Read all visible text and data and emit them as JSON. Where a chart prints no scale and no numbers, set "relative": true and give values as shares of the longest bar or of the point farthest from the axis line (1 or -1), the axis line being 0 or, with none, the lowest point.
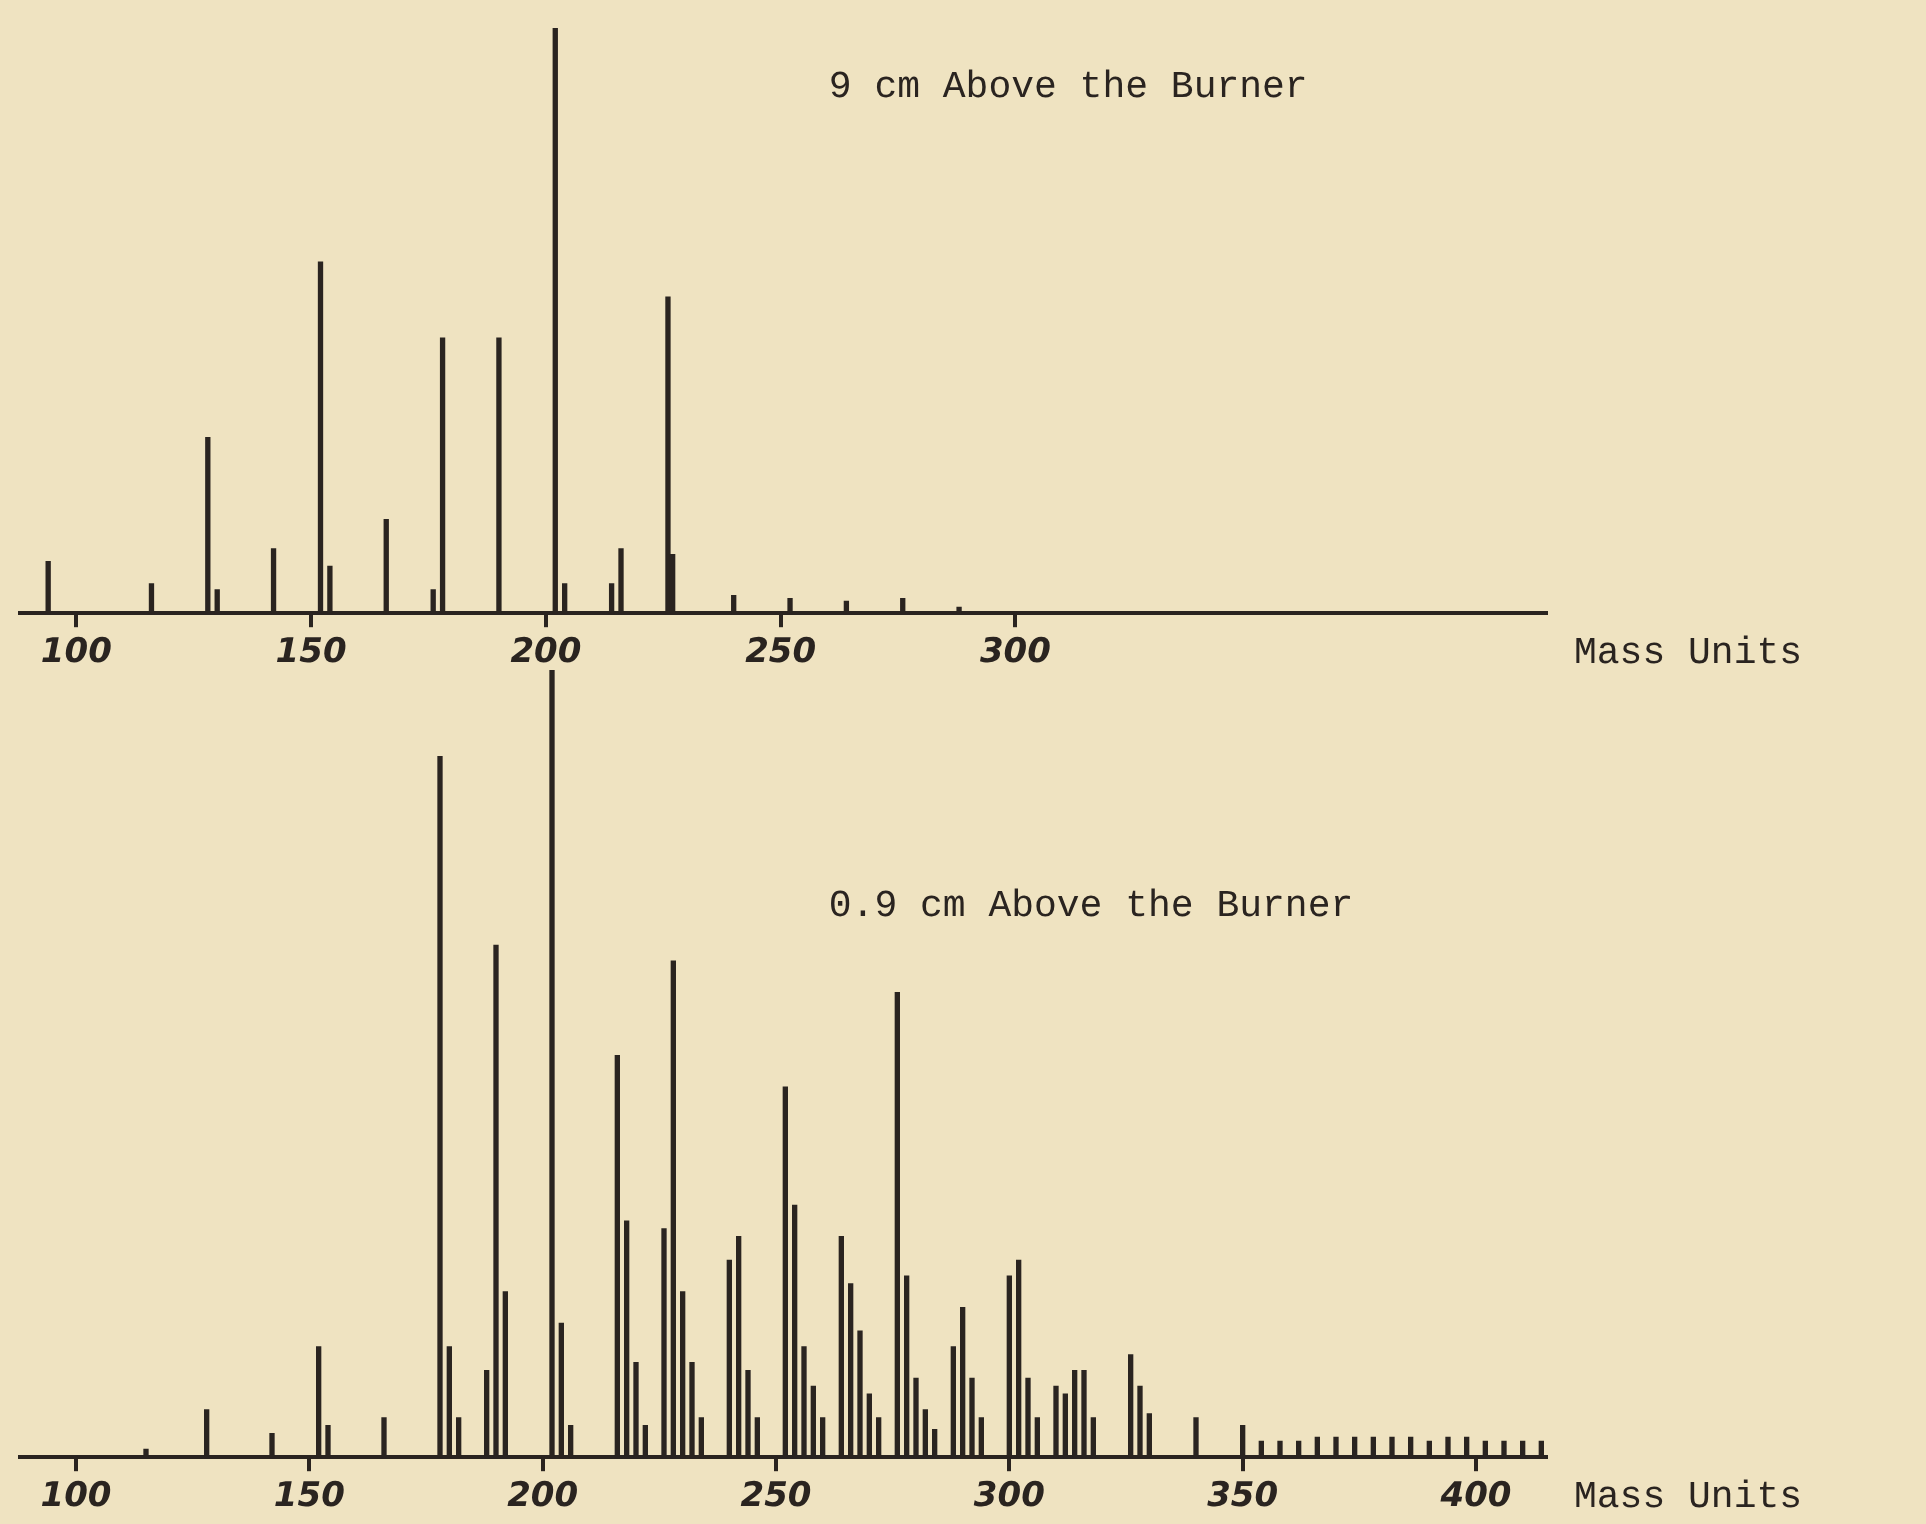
{
  "chart_data": [
    {
      "type": "bar",
      "title": "9 cm Above the Burner",
      "xlabel": "Mass Units",
      "relative": true,
      "color": "#2a2420",
      "xlim": [
        88,
        413
      ],
      "xticks": [
        100,
        150,
        200,
        250,
        300
      ],
      "x": [
        94,
        116,
        128,
        130,
        142,
        152,
        154,
        166,
        176,
        178,
        190,
        202,
        204,
        214,
        216,
        226,
        227,
        240,
        252,
        264,
        276,
        288
      ],
      "values": [
        0.088,
        0.05,
        0.3,
        0.04,
        0.11,
        0.6,
        0.08,
        0.16,
        0.04,
        0.47,
        0.47,
        1,
        0.05,
        0.05,
        0.11,
        0.54,
        0.1,
        0.03,
        0.025,
        0.02,
        0.025,
        0.01
      ]
    },
    {
      "type": "bar",
      "title": "0.9 cm Above the Burner",
      "xlabel": "Mass Units",
      "relative": true,
      "color": "#2a2420",
      "xlim": [
        88,
        415
      ],
      "xticks": [
        100,
        150,
        200,
        250,
        300,
        350,
        400
      ],
      "x": [
        115,
        128,
        142,
        152,
        154,
        166,
        178,
        180,
        182,
        188,
        190,
        192,
        202,
        204,
        206,
        216,
        218,
        220,
        222,
        226,
        228,
        230,
        232,
        234,
        240,
        242,
        244,
        246,
        252,
        254,
        256,
        258,
        260,
        264,
        266,
        268,
        270,
        272,
        276,
        278,
        280,
        282,
        284,
        288,
        290,
        292,
        294,
        300,
        302,
        304,
        306,
        310,
        312,
        314,
        316,
        318,
        326,
        328,
        330,
        340,
        350,
        354,
        358,
        362,
        366,
        370,
        374,
        378,
        382,
        386,
        390,
        394,
        398,
        402,
        406,
        410,
        414
      ],
      "values": [
        0.01,
        0.06,
        0.03,
        0.14,
        0.04,
        0.05,
        0.89,
        0.14,
        0.05,
        0.11,
        0.65,
        0.21,
        1,
        0.17,
        0.04,
        0.51,
        0.3,
        0.12,
        0.04,
        0.29,
        0.63,
        0.21,
        0.12,
        0.05,
        0.25,
        0.28,
        0.11,
        0.05,
        0.47,
        0.32,
        0.14,
        0.09,
        0.05,
        0.28,
        0.22,
        0.16,
        0.08,
        0.05,
        0.59,
        0.23,
        0.1,
        0.06,
        0.035,
        0.14,
        0.19,
        0.1,
        0.05,
        0.23,
        0.25,
        0.1,
        0.05,
        0.09,
        0.08,
        0.11,
        0.11,
        0.05,
        0.13,
        0.09,
        0.055,
        0.05,
        0.04,
        0.02,
        0.02,
        0.02,
        0.025,
        0.025,
        0.025,
        0.025,
        0.025,
        0.025,
        0.02,
        0.025,
        0.025,
        0.02,
        0.02,
        0.02,
        0.02
      ]
    }
  ]
}
